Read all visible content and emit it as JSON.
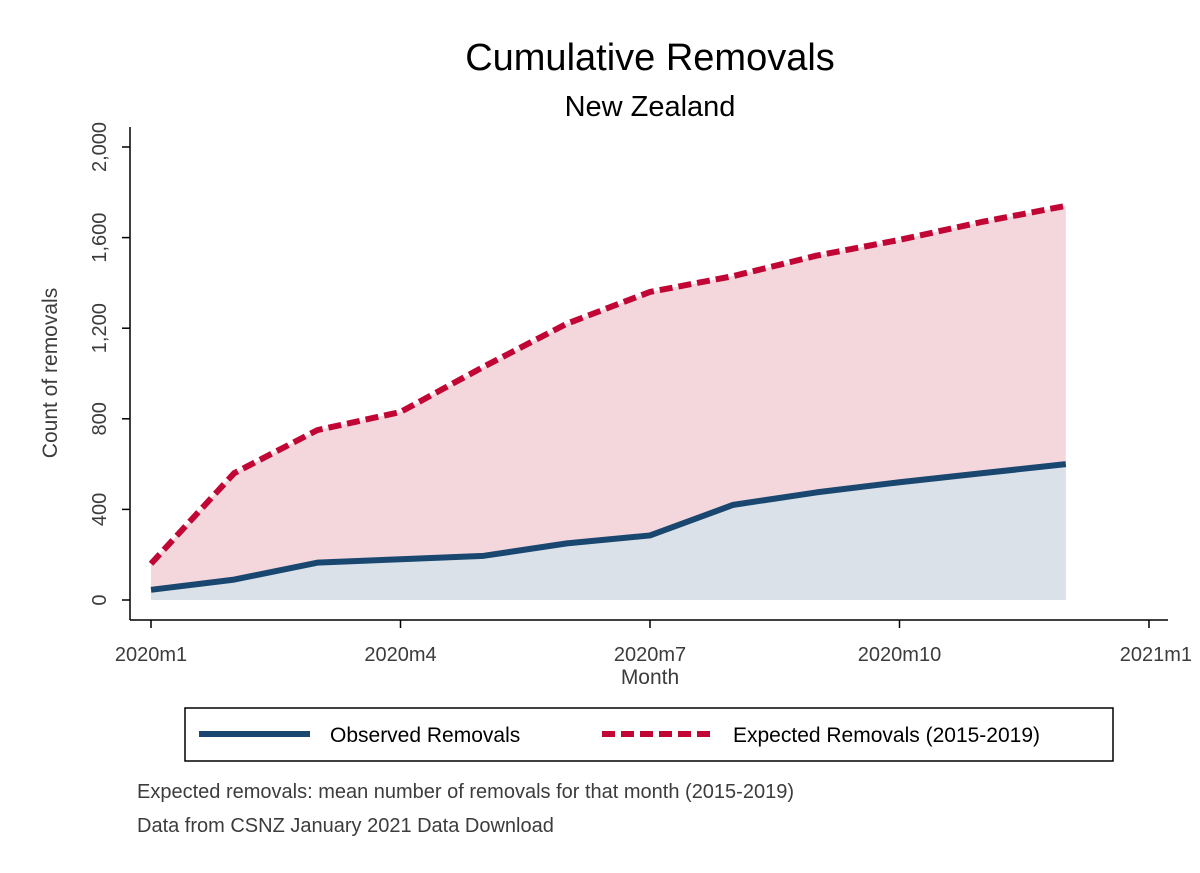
{
  "chart_data": {
    "type": "area",
    "title": "Cumulative Removals",
    "subtitle": "New Zealand",
    "xlabel": "Month",
    "ylabel": "Count of removals",
    "x_ticks": [
      {
        "index": 0,
        "label": "2020m1"
      },
      {
        "index": 3,
        "label": "2020m4"
      },
      {
        "index": 6,
        "label": "2020m7"
      },
      {
        "index": 9,
        "label": "2020m10"
      },
      {
        "index": 12,
        "label": "2021m1"
      }
    ],
    "y_ticks": [
      {
        "value": 0,
        "label": "0"
      },
      {
        "value": 400,
        "label": "400"
      },
      {
        "value": 800,
        "label": "800"
      },
      {
        "value": 1200,
        "label": "1,200"
      },
      {
        "value": 1600,
        "label": "1,600"
      },
      {
        "value": 2000,
        "label": "2,000"
      }
    ],
    "xlim": [
      0,
      12
    ],
    "ylim": [
      0,
      2000
    ],
    "x": [
      0,
      1,
      2,
      3,
      4,
      5,
      6,
      7,
      8,
      9,
      10,
      11
    ],
    "series": [
      {
        "name": "Observed Removals",
        "color": "#1a476f",
        "fill": "#dbe1e8",
        "style": "solid",
        "values": [
          45,
          90,
          165,
          180,
          195,
          250,
          285,
          420,
          475,
          520,
          560,
          600
        ]
      },
      {
        "name": "Expected Removals (2015-2019)",
        "color": "#c10534",
        "fill": "#f4d7dd",
        "style": "dashed",
        "values": [
          160,
          560,
          750,
          830,
          1030,
          1220,
          1360,
          1430,
          1520,
          1590,
          1670,
          1740
        ]
      }
    ],
    "grid": false,
    "legend": "bottom",
    "notes": [
      "Expected removals: mean number of removals for that month (2015-2019)",
      "Data from CSNZ January 2021 Data Download"
    ]
  }
}
